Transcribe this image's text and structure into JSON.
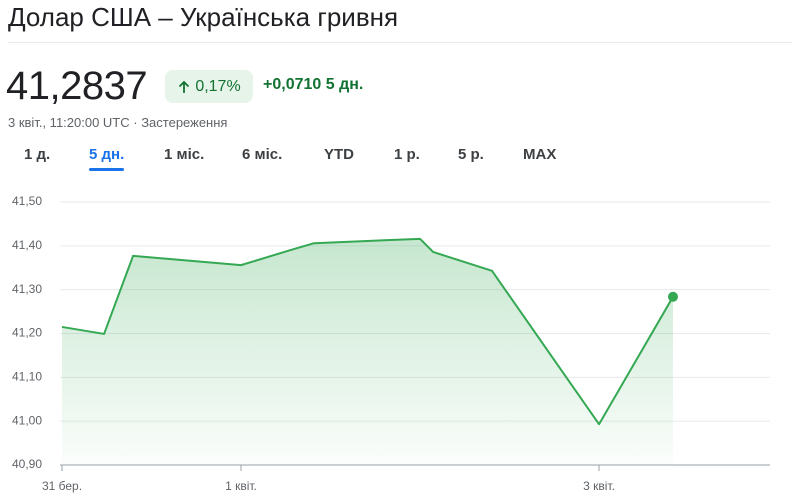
{
  "header": {
    "title": "Долар США – Українська гривня",
    "price": "41,2837",
    "change_pct": "0,17%",
    "change_abs": "+0,0710 5 дн.",
    "timestamp": "3 квіт., 11:20:00 UTC · Застереження"
  },
  "tabs": {
    "items": [
      "1 д.",
      "5 дн.",
      "1 міс.",
      "6 міс.",
      "YTD",
      "1 р.",
      "5 р.",
      "MAX"
    ],
    "active": 1
  },
  "chart_data": {
    "type": "area",
    "x": [
      0,
      0.235,
      0.397,
      1.0,
      1.274,
      1.408,
      2.0,
      2.073,
      2.402,
      3.0,
      3.413
    ],
    "values": [
      41.215,
      41.199,
      41.377,
      41.356,
      41.39,
      41.406,
      41.416,
      41.386,
      41.343,
      40.993,
      41.2837
    ],
    "color": "#34a853",
    "xlim": [
      0,
      3.955
    ],
    "ylim": [
      40.9,
      41.5
    ],
    "xticks": [
      {
        "value": 0,
        "label": "31 бер."
      },
      {
        "value": 1,
        "label": "1 квіт."
      },
      {
        "value": 3,
        "label": "3 квіт."
      }
    ],
    "yticks": [
      {
        "value": 40.9,
        "label": "40,90"
      },
      {
        "value": 41.0,
        "label": "41,00"
      },
      {
        "value": 41.1,
        "label": "41,10"
      },
      {
        "value": 41.2,
        "label": "41,20"
      },
      {
        "value": 41.3,
        "label": "41,30"
      },
      {
        "value": 41.4,
        "label": "41,40"
      },
      {
        "value": 41.5,
        "label": "41,50"
      }
    ],
    "grid": true
  }
}
